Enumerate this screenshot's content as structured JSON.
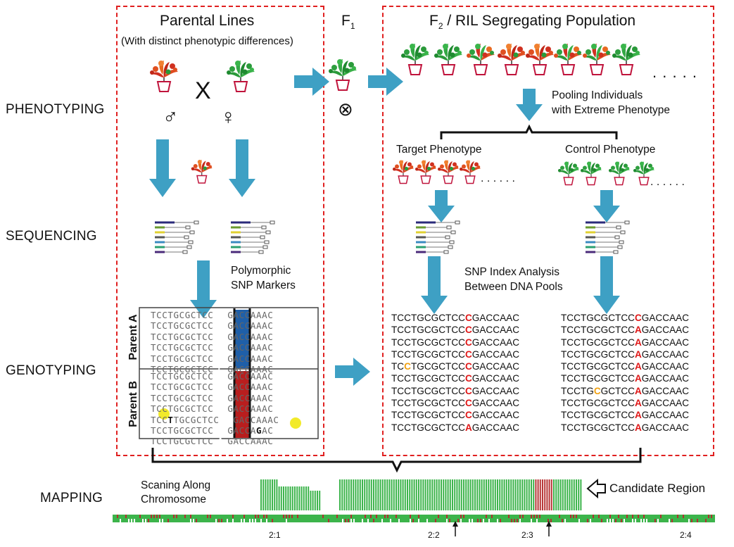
{
  "stages": {
    "phenotyping": "PHENOTYPING",
    "sequencing": "SEQUENCING",
    "genotyping": "GENOTYPING",
    "mapping": "MAPPING"
  },
  "parental": {
    "title": "Parental Lines",
    "subtitle": "(With distinct phenotypic differences)",
    "cross": "X",
    "male": "♂",
    "female": "♀"
  },
  "f1": {
    "label": "F",
    "sub": "1",
    "self": "⊗"
  },
  "f2": {
    "title_pre": "F",
    "title_sub": "2",
    "title_post": " / RIL Segregating Population",
    "dots": ". . . . .",
    "dots_small": ". . . . . ."
  },
  "pooling": {
    "line1": "Pooling Individuals",
    "line2": "with Extreme Phenotype"
  },
  "target_label": "Target Phenotype",
  "control_label": "Control Phenotype",
  "snp_markers": {
    "line1": "Polymorphic",
    "line2": "SNP Markers"
  },
  "snp_index": {
    "line1": "SNP Index Analysis",
    "line2": "Between DNA Pools"
  },
  "parentA": {
    "label": "Parent A",
    "seqs": [
      "TCCTGCGCTCC",
      "TCCTGCGCTCC",
      "TCCTGCGCTCC",
      "TCCTGCGCTCC",
      "TCCTGCGCTCC",
      "TCCTGCGCTCC"
    ],
    "allele": "C",
    "tail": "GACCAAAC",
    "color": "#1f5fa8"
  },
  "parentB": {
    "label": "Parent B",
    "allele": "A",
    "color": "#b81e1e",
    "rows": [
      [
        "TCCTGCGCTCC",
        "",
        "GACCAAAC"
      ],
      [
        "TCCTGCGCTCC",
        "",
        "GACCAAAC"
      ],
      [
        "TCCTGCGCTCC",
        "",
        "GACCAAAC"
      ],
      [
        "TCCTGCGCTCC",
        "",
        "GACCAAAC"
      ],
      [
        "TCC",
        "T",
        "TGCGCTCC",
        "GACCAAAC"
      ],
      [
        "TCCTGCGCTCC",
        "",
        "GACCA",
        "G",
        "AC"
      ],
      [
        "TCCTGCGCTCC",
        "",
        "GACCAAAC"
      ]
    ]
  },
  "target_pool": [
    [
      "TCCTGCGCTCC",
      "C",
      "GACCAAC"
    ],
    [
      "TCCTGCGCTCC",
      "C",
      "GACCAAC"
    ],
    [
      "TCCTGCGCTCC",
      "C",
      "GACCAAC"
    ],
    [
      "TCCTGCGCTCC",
      "C",
      "GACCAAC"
    ],
    [
      "TCCTGCGCTCC",
      "C",
      "GACCAAC",
      "TC",
      "C",
      "TGCGCTCC"
    ],
    [
      "TCCTGCGCTCC",
      "C",
      "GACCAAC"
    ],
    [
      "TCCTGCGCTCC",
      "C",
      "GACCAAC"
    ],
    [
      "TCCTGCGCTCC",
      "C",
      "GACCAAC"
    ],
    [
      "TCCTGCGCTCC",
      "C",
      "GACCAAC"
    ],
    [
      "TCCTGCGCTCC",
      "A",
      "GACCAAC"
    ]
  ],
  "control_pool": [
    [
      "TCCTGCGCTCC",
      "C",
      "GACCAAC"
    ],
    [
      "TCCTGCGCTCC",
      "A",
      "GACCAAC"
    ],
    [
      "TCCTGCGCTCC",
      "A",
      "GACCAAC"
    ],
    [
      "TCCTGCGCTCC",
      "A",
      "GACCAAC"
    ],
    [
      "TCCTGCGCTCC",
      "A",
      "GACCAAC"
    ],
    [
      "TCCTGCGCTCC",
      "A",
      "GACCAAC"
    ],
    [
      "TCCTGCGCTCC",
      "A",
      "GACCAAC"
    ],
    [
      "TCCTGCGCTCC",
      "A",
      "GACCAAC"
    ],
    [
      "TCCTGCGCTCC",
      "A",
      "GACCAAC"
    ],
    [
      "TCCTGCGCTCC",
      "A",
      "GACCAAC"
    ]
  ],
  "mapping": {
    "scan1": "Scaning Along",
    "scan2": "Chromosome",
    "candidate": "Candidate Region",
    "ticks": [
      "2:1",
      "2:2",
      "2:3",
      "2:4"
    ]
  },
  "colors": {
    "arrow": "#3ea0c4",
    "box": "#e02020",
    "bar": "#3cb44b",
    "bar_dark": "#b03030"
  }
}
